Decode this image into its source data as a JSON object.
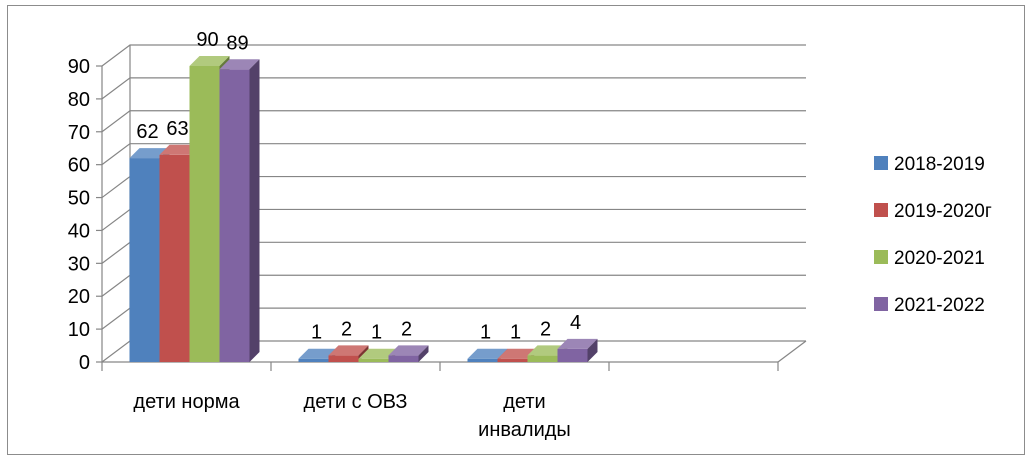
{
  "chart_data": {
    "type": "bar",
    "title": "",
    "xlabel": "",
    "ylabel": "",
    "ylim": [
      0,
      90
    ],
    "yticks": [
      0,
      10,
      20,
      30,
      40,
      50,
      60,
      70,
      80,
      90
    ],
    "grid": true,
    "legend_position": "right",
    "categories": [
      "дети норма",
      "дети с ОВЗ",
      "дети инвалиды"
    ],
    "category_label_lines": [
      [
        "дети норма"
      ],
      [
        "дети с ОВЗ"
      ],
      [
        "дети",
        "инвалиды"
      ]
    ],
    "series": [
      {
        "name": "2018-2019",
        "values": [
          62,
          1,
          1
        ],
        "color": "#4F81BD"
      },
      {
        "name": "2019-2020г",
        "values": [
          63,
          2,
          1
        ],
        "color": "#C0504D"
      },
      {
        "name": "2020-2021",
        "values": [
          90,
          1,
          2
        ],
        "color": "#9BBB59"
      },
      {
        "name": "2021-2022",
        "values": [
          89,
          2,
          4
        ],
        "color": "#8064A2"
      }
    ]
  }
}
